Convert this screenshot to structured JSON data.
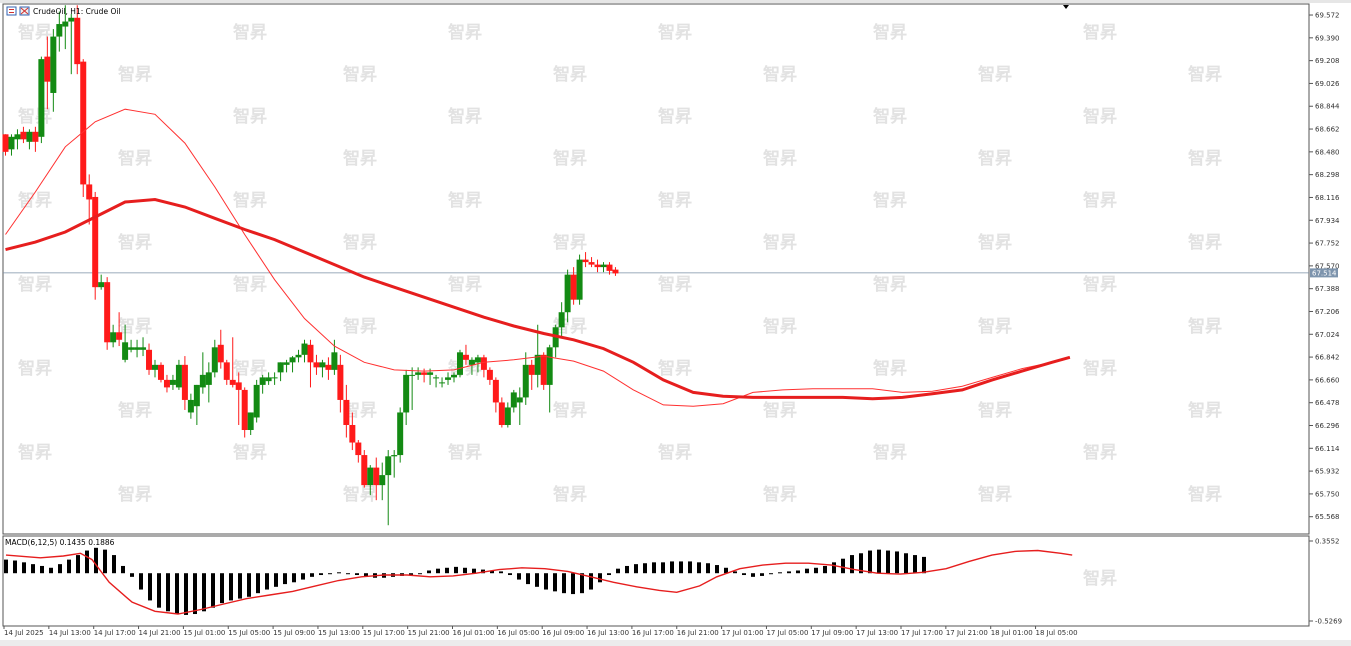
{
  "chart_header": {
    "symbol_text": "CrudeOil, H1:  Crude Oil"
  },
  "macd_header": {
    "text": "MACD(6,12,5) 0.1435 0.1886"
  },
  "watermark_text": "智昇",
  "colors": {
    "up_candle": "#138a13",
    "down_candle": "#ff1a1a",
    "ma_fast": "#ff3030",
    "ma_slow": "#e61e1e",
    "macd_hist": "#000000",
    "macd_signal": "#e61e1e",
    "price_line": "#7a8fa6",
    "price_tag": "#7d94ad"
  },
  "chart_data": [
    {
      "type": "candlestick",
      "title": "",
      "ylim": [
        65.43,
        69.66
      ],
      "y_ticks": [
        "69.572",
        "69.390",
        "69.208",
        "69.026",
        "68.844",
        "68.662",
        "68.480",
        "68.298",
        "68.116",
        "67.934",
        "67.752",
        "67.570",
        "67.388",
        "67.206",
        "67.024",
        "66.842",
        "66.660",
        "66.478",
        "66.296",
        "66.114",
        "65.932",
        "65.750",
        "65.568"
      ],
      "x_tick_labels": [
        "14 Jul 2025",
        "14 Jul 13:00",
        "14 Jul 17:00",
        "14 Jul 21:00",
        "15 Jul 01:00",
        "15 Jul 05:00",
        "15 Jul 09:00",
        "15 Jul 13:00",
        "15 Jul 17:00",
        "15 Jul 21:00",
        "16 Jul 01:00",
        "16 Jul 05:00",
        "16 Jul 09:00",
        "16 Jul 13:00",
        "16 Jul 17:00",
        "16 Jul 21:00",
        "17 Jul 01:00",
        "17 Jul 05:00",
        "17 Jul 09:00",
        "17 Jul 13:00",
        "17 Jul 17:00",
        "17 Jul 21:00",
        "18 Jul 01:00",
        "18 Jul 05:00"
      ],
      "current_price": "67.514",
      "ohlc": [
        [
          68.62,
          68.62,
          68.45,
          68.48
        ],
        [
          68.5,
          68.62,
          68.45,
          68.6
        ],
        [
          68.58,
          68.66,
          68.5,
          68.62
        ],
        [
          68.64,
          68.68,
          68.55,
          68.58
        ],
        [
          68.56,
          68.66,
          68.5,
          68.64
        ],
        [
          68.64,
          68.68,
          68.48,
          68.56
        ],
        [
          68.6,
          69.24,
          68.55,
          69.22
        ],
        [
          69.24,
          69.4,
          68.82,
          69.04
        ],
        [
          68.95,
          69.46,
          68.8,
          69.4
        ],
        [
          69.4,
          69.6,
          69.28,
          69.5
        ],
        [
          69.48,
          69.65,
          69.3,
          69.52
        ],
        [
          69.52,
          69.58,
          69.1,
          69.55
        ],
        [
          69.55,
          69.65,
          69.1,
          69.18
        ],
        [
          69.2,
          69.22,
          68.12,
          68.22
        ],
        [
          68.22,
          68.3,
          67.9,
          68.1
        ],
        [
          68.12,
          68.16,
          67.3,
          67.4
        ],
        [
          67.4,
          67.5,
          67.38,
          67.44
        ],
        [
          67.44,
          67.48,
          66.9,
          66.96
        ],
        [
          66.96,
          67.1,
          66.92,
          67.04
        ],
        [
          67.04,
          67.2,
          66.93,
          66.98
        ],
        [
          66.82,
          67.1,
          66.8,
          66.96
        ],
        [
          66.9,
          66.98,
          66.88,
          66.92
        ],
        [
          66.9,
          66.98,
          66.84,
          66.92
        ],
        [
          66.9,
          67.0,
          66.85,
          66.92
        ],
        [
          66.9,
          66.95,
          66.7,
          66.74
        ],
        [
          66.74,
          66.82,
          66.68,
          66.78
        ],
        [
          66.78,
          66.8,
          66.64,
          66.66
        ],
        [
          66.66,
          66.7,
          66.56,
          66.6
        ],
        [
          66.62,
          66.7,
          66.58,
          66.66
        ],
        [
          66.6,
          66.82,
          66.58,
          66.78
        ],
        [
          66.78,
          66.85,
          66.42,
          66.5
        ],
        [
          66.4,
          66.55,
          66.35,
          66.5
        ],
        [
          66.45,
          66.62,
          66.3,
          66.62
        ],
        [
          66.6,
          66.88,
          66.55,
          66.7
        ],
        [
          66.62,
          66.8,
          66.48,
          66.72
        ],
        [
          66.72,
          66.98,
          66.68,
          66.92
        ],
        [
          66.94,
          67.06,
          66.75,
          66.8
        ],
        [
          66.8,
          66.82,
          66.62,
          66.66
        ],
        [
          66.66,
          67.0,
          66.6,
          66.62
        ],
        [
          66.64,
          66.72,
          66.3,
          66.58
        ],
        [
          66.58,
          66.6,
          66.2,
          66.26
        ],
        [
          66.26,
          66.4,
          66.22,
          66.4
        ],
        [
          66.36,
          66.66,
          66.32,
          66.62
        ],
        [
          66.62,
          66.7,
          66.55,
          66.68
        ],
        [
          66.65,
          66.72,
          66.62,
          66.68
        ],
        [
          66.68,
          66.72,
          66.62,
          66.68
        ],
        [
          66.72,
          66.8,
          66.65,
          66.8
        ],
        [
          66.78,
          66.82,
          66.72,
          66.8
        ],
        [
          66.8,
          66.85,
          66.72,
          66.84
        ],
        [
          66.84,
          66.9,
          66.8,
          66.86
        ],
        [
          66.86,
          66.98,
          66.8,
          66.95
        ],
        [
          66.94,
          66.98,
          66.6,
          66.8
        ],
        [
          66.8,
          66.86,
          66.7,
          66.76
        ],
        [
          66.76,
          66.82,
          66.68,
          66.8
        ],
        [
          66.78,
          66.84,
          66.66,
          66.74
        ],
        [
          66.74,
          66.98,
          66.7,
          66.88
        ],
        [
          66.78,
          66.86,
          66.4,
          66.5
        ],
        [
          66.5,
          66.62,
          66.2,
          66.3
        ],
        [
          66.3,
          66.4,
          66.1,
          66.16
        ],
        [
          66.16,
          66.18,
          66.0,
          66.06
        ],
        [
          66.06,
          66.1,
          65.8,
          65.82
        ],
        [
          65.82,
          65.98,
          65.74,
          65.96
        ],
        [
          65.96,
          66.04,
          65.7,
          65.82
        ],
        [
          65.82,
          66.0,
          65.7,
          65.9
        ],
        [
          65.9,
          66.1,
          65.5,
          66.05
        ],
        [
          66.05,
          66.1,
          65.88,
          66.06
        ],
        [
          66.06,
          66.44,
          66.0,
          66.4
        ],
        [
          66.4,
          66.74,
          66.3,
          66.7
        ],
        [
          66.7,
          66.76,
          66.42,
          66.7
        ],
        [
          66.7,
          66.76,
          66.66,
          66.72
        ],
        [
          66.72,
          66.75,
          66.64,
          66.7
        ],
        [
          66.7,
          66.75,
          66.62,
          66.72
        ],
        [
          66.68,
          66.7,
          66.6,
          66.68
        ],
        [
          66.64,
          66.68,
          66.6,
          66.64
        ],
        [
          66.66,
          66.72,
          66.62,
          66.68
        ],
        [
          66.68,
          66.72,
          66.64,
          66.7
        ],
        [
          66.7,
          66.9,
          66.68,
          66.88
        ],
        [
          66.86,
          66.94,
          66.78,
          66.82
        ],
        [
          66.78,
          66.84,
          66.7,
          66.82
        ],
        [
          66.8,
          66.86,
          66.72,
          66.84
        ],
        [
          66.84,
          66.86,
          66.68,
          66.74
        ],
        [
          66.74,
          66.76,
          66.62,
          66.66
        ],
        [
          66.66,
          66.68,
          66.4,
          66.48
        ],
        [
          66.48,
          66.52,
          66.28,
          66.3
        ],
        [
          66.3,
          66.48,
          66.28,
          66.44
        ],
        [
          66.44,
          66.58,
          66.4,
          66.56
        ],
        [
          66.48,
          66.6,
          66.3,
          66.52
        ],
        [
          66.52,
          66.88,
          66.46,
          66.78
        ],
        [
          66.78,
          66.82,
          66.58,
          66.7
        ],
        [
          66.7,
          67.1,
          66.6,
          66.86
        ],
        [
          66.86,
          66.88,
          66.58,
          66.62
        ],
        [
          66.62,
          66.94,
          66.4,
          66.92
        ],
        [
          66.92,
          67.1,
          66.84,
          67.08
        ],
        [
          67.08,
          67.28,
          67.0,
          67.2
        ],
        [
          67.2,
          67.54,
          67.12,
          67.5
        ],
        [
          67.5,
          67.56,
          67.26,
          67.3
        ],
        [
          67.3,
          67.66,
          67.26,
          67.62
        ],
        [
          67.62,
          67.68,
          67.56,
          67.6
        ],
        [
          67.6,
          67.64,
          67.56,
          67.58
        ],
        [
          67.58,
          67.62,
          67.52,
          67.56
        ],
        [
          67.56,
          67.6,
          67.52,
          67.58
        ],
        [
          67.58,
          67.6,
          67.5,
          67.53
        ],
        [
          67.54,
          67.56,
          67.49,
          67.51
        ]
      ],
      "ma_fast": [
        [
          0,
          67.82
        ],
        [
          5,
          68.16
        ],
        [
          10,
          68.52
        ],
        [
          15,
          68.72
        ],
        [
          20,
          68.82
        ],
        [
          25,
          68.78
        ],
        [
          30,
          68.55
        ],
        [
          35,
          68.2
        ],
        [
          40,
          67.82
        ],
        [
          45,
          67.46
        ],
        [
          50,
          67.15
        ],
        [
          55,
          66.93
        ],
        [
          60,
          66.8
        ],
        [
          65,
          66.74
        ],
        [
          70,
          66.73
        ],
        [
          75,
          66.74
        ],
        [
          80,
          66.8
        ],
        [
          85,
          66.82
        ],
        [
          90,
          66.85
        ],
        [
          95,
          66.81
        ],
        [
          100,
          66.73
        ],
        [
          105,
          66.58
        ],
        [
          110,
          66.46
        ],
        [
          115,
          66.45
        ],
        [
          120,
          66.47
        ],
        [
          125,
          66.56
        ],
        [
          130,
          66.58
        ],
        [
          135,
          66.59
        ],
        [
          140,
          66.59
        ],
        [
          145,
          66.59
        ],
        [
          150,
          66.56
        ],
        [
          155,
          66.57
        ],
        [
          160,
          66.61
        ],
        [
          165,
          66.68
        ],
        [
          170,
          66.75
        ],
        [
          175,
          66.8
        ],
        [
          178,
          66.84
        ]
      ],
      "ma_slow": [
        [
          0,
          67.7
        ],
        [
          5,
          67.76
        ],
        [
          10,
          67.84
        ],
        [
          15,
          67.96
        ],
        [
          20,
          68.08
        ],
        [
          25,
          68.1
        ],
        [
          30,
          68.04
        ],
        [
          35,
          67.95
        ],
        [
          40,
          67.86
        ],
        [
          45,
          67.78
        ],
        [
          50,
          67.68
        ],
        [
          55,
          67.58
        ],
        [
          60,
          67.48
        ],
        [
          65,
          67.4
        ],
        [
          70,
          67.32
        ],
        [
          75,
          67.24
        ],
        [
          80,
          67.16
        ],
        [
          85,
          67.09
        ],
        [
          90,
          67.03
        ],
        [
          95,
          66.98
        ],
        [
          100,
          66.91
        ],
        [
          105,
          66.8
        ],
        [
          110,
          66.66
        ],
        [
          115,
          66.56
        ],
        [
          120,
          66.53
        ],
        [
          125,
          66.52
        ],
        [
          130,
          66.52
        ],
        [
          135,
          66.52
        ],
        [
          140,
          66.52
        ],
        [
          145,
          66.51
        ],
        [
          150,
          66.52
        ],
        [
          155,
          66.55
        ],
        [
          160,
          66.58
        ],
        [
          165,
          66.66
        ],
        [
          170,
          66.73
        ],
        [
          175,
          66.8
        ],
        [
          178,
          66.84
        ]
      ]
    },
    {
      "type": "macd",
      "title": "",
      "ylim": [
        -0.5269,
        0.3552
      ],
      "y_ticks": [
        "0.3552",
        "-0.5269"
      ],
      "histogram": [
        0.15,
        0.14,
        0.12,
        0.1,
        0.08,
        0.06,
        0.1,
        0.15,
        0.2,
        0.25,
        0.28,
        0.26,
        0.2,
        0.08,
        -0.04,
        -0.18,
        -0.3,
        -0.38,
        -0.42,
        -0.45,
        -0.46,
        -0.45,
        -0.42,
        -0.38,
        -0.33,
        -0.3,
        -0.28,
        -0.26,
        -0.22,
        -0.18,
        -0.15,
        -0.12,
        -0.1,
        -0.07,
        -0.04,
        -0.02,
        0.0,
        0.01,
        0.0,
        -0.02,
        -0.04,
        -0.05,
        -0.05,
        -0.04,
        -0.03,
        -0.02,
        0.0,
        0.03,
        0.05,
        0.06,
        0.07,
        0.06,
        0.05,
        0.04,
        0.03,
        0.02,
        -0.02,
        -0.07,
        -0.12,
        -0.15,
        -0.18,
        -0.2,
        -0.22,
        -0.23,
        -0.22,
        -0.18,
        -0.1,
        -0.02,
        0.05,
        0.08,
        0.1,
        0.11,
        0.12,
        0.12,
        0.13,
        0.13,
        0.13,
        0.12,
        0.11,
        0.09,
        0.06,
        0.02,
        -0.02,
        -0.04,
        -0.03,
        -0.01,
        0.01,
        0.02,
        0.03,
        0.05,
        0.06,
        0.08,
        0.12,
        0.16,
        0.2,
        0.22,
        0.25,
        0.26,
        0.25,
        0.24,
        0.22,
        0.2,
        0.18
      ],
      "signal": [
        [
          0,
          0.2
        ],
        [
          6,
          0.17
        ],
        [
          10,
          0.19
        ],
        [
          13,
          0.22
        ],
        [
          15,
          0.15
        ],
        [
          18,
          -0.1
        ],
        [
          22,
          -0.32
        ],
        [
          26,
          -0.42
        ],
        [
          30,
          -0.45
        ],
        [
          34,
          -0.4
        ],
        [
          38,
          -0.34
        ],
        [
          42,
          -0.28
        ],
        [
          46,
          -0.24
        ],
        [
          50,
          -0.2
        ],
        [
          54,
          -0.14
        ],
        [
          58,
          -0.08
        ],
        [
          62,
          -0.04
        ],
        [
          66,
          -0.02
        ],
        [
          70,
          -0.02
        ],
        [
          74,
          -0.04
        ],
        [
          78,
          -0.03
        ],
        [
          82,
          0.0
        ],
        [
          86,
          0.04
        ],
        [
          90,
          0.06
        ],
        [
          94,
          0.05
        ],
        [
          98,
          0.02
        ],
        [
          102,
          -0.04
        ],
        [
          106,
          -0.1
        ],
        [
          110,
          -0.15
        ],
        [
          114,
          -0.19
        ],
        [
          117,
          -0.21
        ],
        [
          121,
          -0.14
        ],
        [
          124,
          -0.04
        ],
        [
          128,
          0.05
        ],
        [
          132,
          0.09
        ],
        [
          136,
          0.11
        ],
        [
          140,
          0.11
        ],
        [
          144,
          0.09
        ],
        [
          148,
          0.04
        ],
        [
          152,
          0.0
        ],
        [
          156,
          -0.01
        ],
        [
          160,
          0.01
        ],
        [
          164,
          0.05
        ],
        [
          168,
          0.13
        ],
        [
          172,
          0.2
        ],
        [
          176,
          0.24
        ],
        [
          180,
          0.25
        ],
        [
          184,
          0.22
        ],
        [
          186,
          0.2
        ]
      ]
    }
  ]
}
